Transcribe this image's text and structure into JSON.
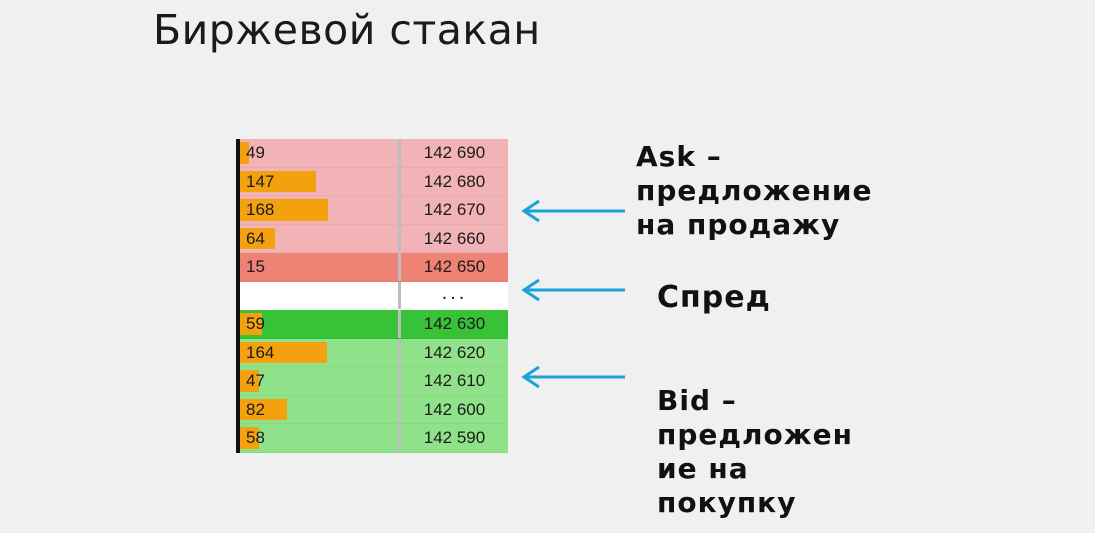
{
  "title": "Биржевой стакан",
  "order_book": {
    "rows": [
      {
        "volume": "49",
        "price": "142 690",
        "side": "ask",
        "bar_fraction": 0.06
      },
      {
        "volume": "147",
        "price": "142 680",
        "side": "ask",
        "bar_fraction": 0.48
      },
      {
        "volume": "168",
        "price": "142 670",
        "side": "ask",
        "bar_fraction": 0.56
      },
      {
        "volume": "64",
        "price": "142 660",
        "side": "ask",
        "bar_fraction": 0.22
      },
      {
        "volume": "15",
        "price": "142 650",
        "side": "ask-best",
        "bar_fraction": 0.0
      },
      {
        "volume": "",
        "price": "...",
        "side": "spread",
        "bar_fraction": 0.0
      },
      {
        "volume": "59",
        "price": "142 630",
        "side": "bid-best",
        "bar_fraction": 0.14
      },
      {
        "volume": "164",
        "price": "142 620",
        "side": "bid",
        "bar_fraction": 0.55
      },
      {
        "volume": "47",
        "price": "142 610",
        "side": "bid",
        "bar_fraction": 0.12
      },
      {
        "volume": "82",
        "price": "142 600",
        "side": "bid",
        "bar_fraction": 0.3
      },
      {
        "volume": "58",
        "price": "142 590",
        "side": "bid",
        "bar_fraction": 0.12
      }
    ],
    "colors": {
      "ask": "#f2b3b7",
      "ask-best": "#ee8275",
      "spread": "#ffffff",
      "bid": "#8fe28a",
      "bid-best": "#38c237",
      "volume_bar": "#f3a10e",
      "arrow": "#1aa3d8"
    }
  },
  "labels": {
    "ask": [
      "Ask –",
      "предложение",
      "на продажу"
    ],
    "spread": [
      "Спред"
    ],
    "bid": [
      "Bid –",
      "предложен",
      "ие на",
      "покупку"
    ]
  }
}
